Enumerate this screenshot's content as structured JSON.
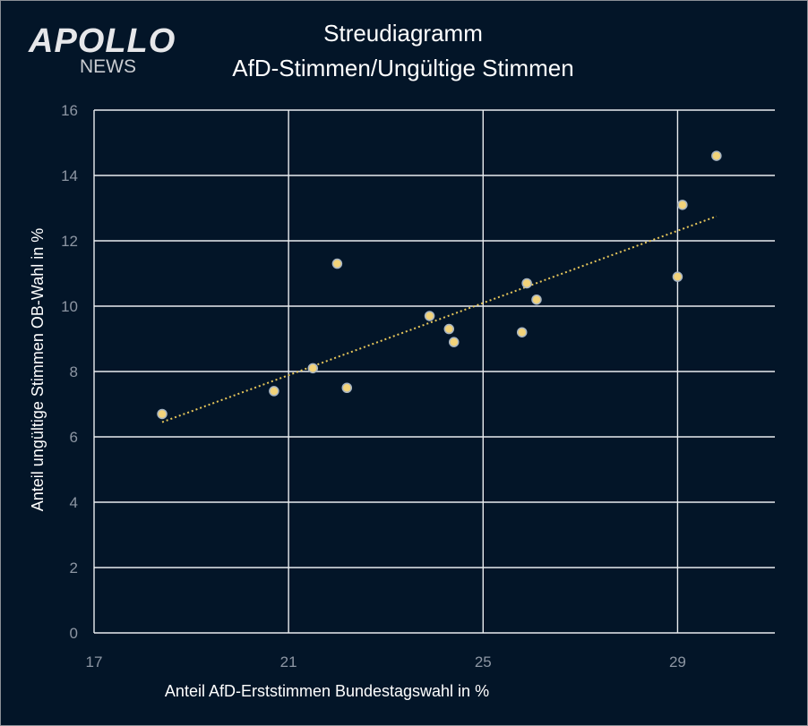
{
  "logo": {
    "main": "APOLLO",
    "sub": "NEWS"
  },
  "colors": {
    "background": "#031528",
    "grid": "#e9ecef",
    "point_fill": "#f2d37a",
    "point_stroke": "#a7b4c2",
    "trendline": "#e6c65a",
    "tick": "#8d96a3",
    "text": "#ffffff"
  },
  "chart_data": {
    "type": "scatter",
    "title": "Streudiagramm",
    "subtitle": "AfD-Stimmen/Ungültige  Stimmen",
    "xlabel": "Anteil AfD-Erststimmen Bundestagswahl in %",
    "ylabel": "Anteil ungültige Stimmen OB-Wahl in %",
    "xlim": [
      17,
      31
    ],
    "ylim": [
      0,
      16
    ],
    "xticks": [
      17,
      21,
      25,
      29
    ],
    "yticks": [
      0,
      2,
      4,
      6,
      8,
      10,
      12,
      14,
      16
    ],
    "grid": true,
    "points": [
      {
        "x": 18.4,
        "y": 6.7
      },
      {
        "x": 20.7,
        "y": 7.4
      },
      {
        "x": 21.5,
        "y": 8.1
      },
      {
        "x": 22.0,
        "y": 11.3
      },
      {
        "x": 22.2,
        "y": 7.5
      },
      {
        "x": 23.9,
        "y": 9.7
      },
      {
        "x": 24.3,
        "y": 9.3
      },
      {
        "x": 24.4,
        "y": 8.9
      },
      {
        "x": 25.8,
        "y": 9.2
      },
      {
        "x": 25.9,
        "y": 10.7
      },
      {
        "x": 26.1,
        "y": 10.2
      },
      {
        "x": 29.0,
        "y": 10.9
      },
      {
        "x": 29.1,
        "y": 13.1
      },
      {
        "x": 29.8,
        "y": 14.6
      }
    ],
    "trendline": {
      "style": "dotted",
      "x_start": 18.4,
      "y_start": 6.45,
      "x_end": 29.8,
      "y_end": 12.75
    }
  }
}
